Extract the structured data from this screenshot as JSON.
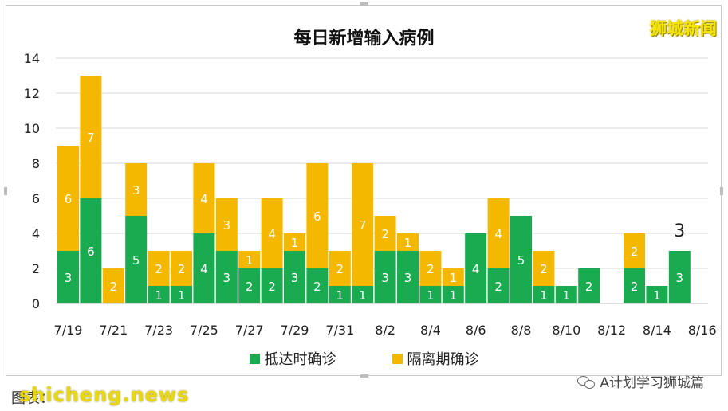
{
  "watermark_top": "狮城新闻",
  "footer": {
    "left_text": "图表：",
    "right_text": "A计划学习狮城篇",
    "watermark": "shicheng.news"
  },
  "colors": {
    "arrival": "#1aaa4f",
    "quarantine": "#f5b800"
  },
  "chart_data": {
    "type": "bar",
    "stacked": true,
    "title": "每日新增输入病例",
    "categories": [
      "7/19",
      "7/20",
      "7/21",
      "7/22",
      "7/23",
      "7/24",
      "7/25",
      "7/26",
      "7/27",
      "7/28",
      "7/29",
      "7/30",
      "7/31",
      "8/1",
      "8/2",
      "8/3",
      "8/4",
      "8/5",
      "8/6",
      "8/7",
      "8/8",
      "8/9",
      "8/10",
      "8/11",
      "8/12",
      "8/13",
      "8/14",
      "8/15"
    ],
    "x_tick_labels": [
      "7/19",
      "7/21",
      "7/23",
      "7/25",
      "7/27",
      "7/29",
      "7/31",
      "8/2",
      "8/4",
      "8/6",
      "8/8",
      "8/10",
      "8/12",
      "8/14",
      "8/16"
    ],
    "series": [
      {
        "name": "抵达时确诊",
        "values": [
          3,
          6,
          0,
          5,
          1,
          1,
          4,
          3,
          2,
          2,
          3,
          2,
          1,
          1,
          3,
          3,
          1,
          1,
          4,
          2,
          5,
          1,
          1,
          2,
          0,
          2,
          1,
          3
        ]
      },
      {
        "name": "隔离期确诊",
        "values": [
          6,
          7,
          2,
          3,
          2,
          2,
          4,
          3,
          1,
          4,
          1,
          6,
          2,
          7,
          2,
          1,
          2,
          1,
          0,
          4,
          0,
          2,
          0,
          0,
          0,
          2,
          0,
          0
        ]
      }
    ],
    "annotations": [
      {
        "category": "8/15",
        "text": "3"
      }
    ],
    "y_ticks": [
      "0",
      "2",
      "4",
      "6",
      "8",
      "10",
      "12",
      "14"
    ],
    "ylim": [
      0,
      14
    ],
    "grid": true,
    "legend_position": "bottom"
  }
}
